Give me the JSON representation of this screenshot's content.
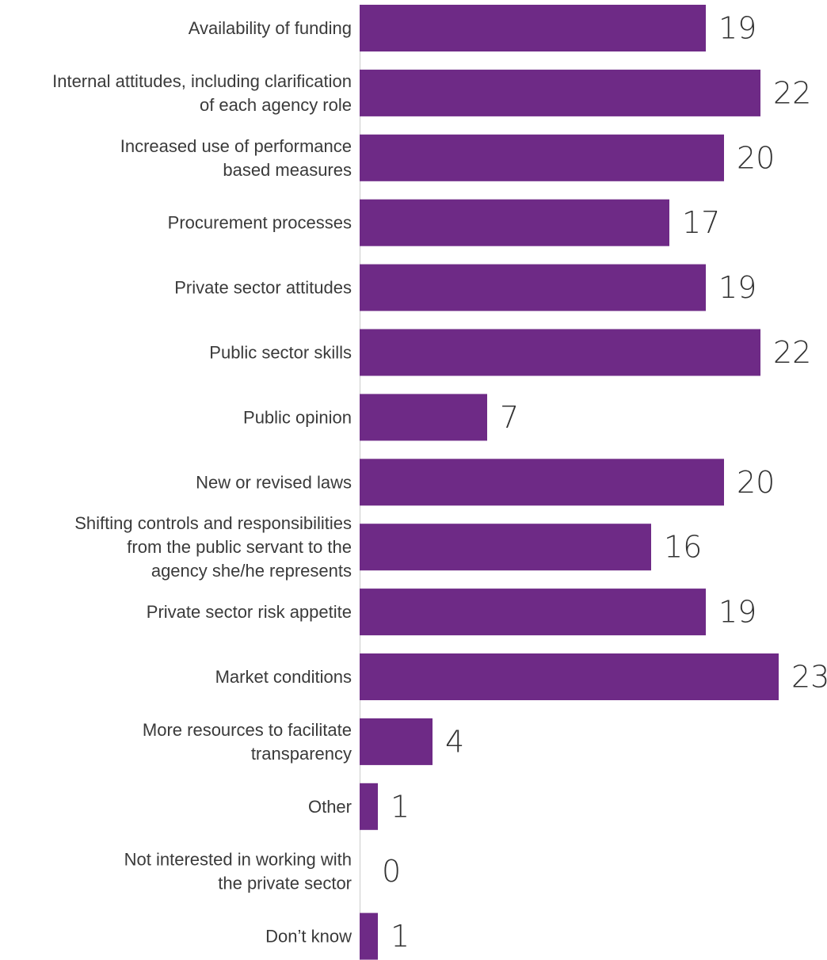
{
  "chart_data": {
    "type": "bar",
    "orientation": "horizontal",
    "title": "",
    "xlabel": "",
    "ylabel": "",
    "categories": [
      "Availability of funding",
      "Internal attitudes, including clarification of each agency role",
      "Increased use of performance based measures",
      "Procurement processes",
      "Private sector attitudes",
      "Public sector skills",
      "Public opinion",
      "New or revised laws",
      "Shifting controls and responsibilities from the public servant to the agency she/he represents",
      "Private sector risk appetite",
      "Market conditions",
      "More resources to facilitate transparency",
      "Other",
      "Not interested in working with the private sector",
      "Don’t know"
    ],
    "category_lines": [
      [
        "Availability of funding"
      ],
      [
        "Internal attitudes, including clarification",
        "of each agency role"
      ],
      [
        "Increased use of performance",
        "based measures"
      ],
      [
        "Procurement processes"
      ],
      [
        "Private sector attitudes"
      ],
      [
        "Public sector skills"
      ],
      [
        "Public opinion"
      ],
      [
        "New or revised laws"
      ],
      [
        "Shifting controls and responsibilities",
        "from the public servant to the",
        "agency she/he represents"
      ],
      [
        "Private sector risk appetite"
      ],
      [
        "Market conditions"
      ],
      [
        "More resources to facilitate",
        "transparency"
      ],
      [
        "Other"
      ],
      [
        "Not interested in working with",
        "the private sector"
      ],
      [
        "Don’t know"
      ]
    ],
    "values": [
      19,
      22,
      20,
      17,
      19,
      22,
      7,
      20,
      16,
      19,
      23,
      4,
      1,
      0,
      1
    ],
    "xlim": [
      0,
      23
    ],
    "grid": false,
    "legend": "none",
    "bar_color": "#6E2A86",
    "baseline_color": "#CCCCCC"
  }
}
